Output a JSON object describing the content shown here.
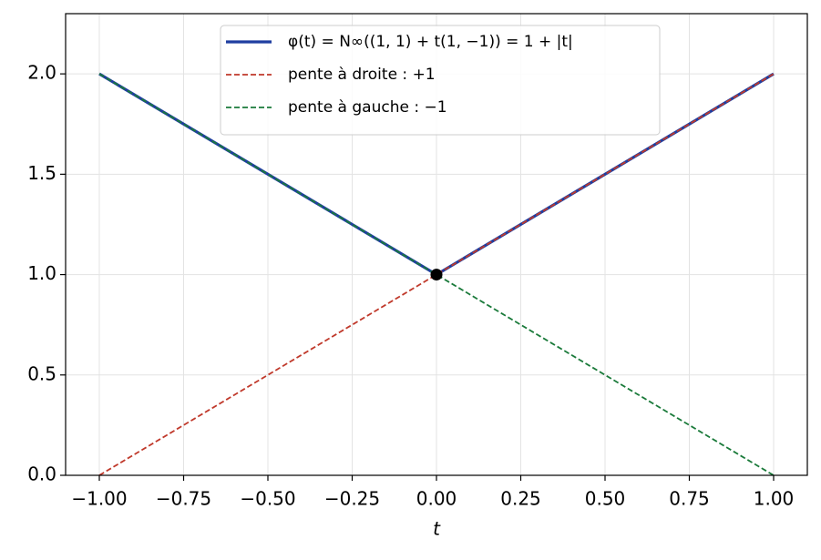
{
  "chart_data": {
    "type": "line",
    "xlabel": "t",
    "xlim": [
      -1.1,
      1.1
    ],
    "ylim": [
      0,
      2.3
    ],
    "xticks": [
      {
        "value": -1,
        "label": "−1.00"
      },
      {
        "value": -0.75,
        "label": "−0.75"
      },
      {
        "value": -0.5,
        "label": "−0.50"
      },
      {
        "value": -0.25,
        "label": "−0.25"
      },
      {
        "value": 0,
        "label": "0.00"
      },
      0.25,
      {
        "value": 0.5,
        "label": "0.50"
      },
      0.75,
      {
        "value": 1,
        "label": "1.00"
      }
    ],
    "yticks": [
      {
        "value": 0,
        "label": "0.0"
      },
      0.5,
      {
        "value": 1,
        "label": "1.0"
      },
      1.5,
      {
        "value": 2,
        "label": "2.0"
      }
    ],
    "grid": true,
    "legend": "upper center",
    "series": [
      {
        "name": "φ(t) = N∞((1, 1) + t(1, −1)) = 1 + |t|",
        "color": "#1f3ea0",
        "linestyle": "solid",
        "x": [
          -1,
          0,
          1
        ],
        "values": [
          2,
          1,
          2
        ]
      },
      {
        "name": "pente à droite : +1",
        "color": "#c0392b",
        "linestyle": "dashed",
        "x": [
          -1,
          1
        ],
        "values": [
          0,
          2
        ]
      },
      {
        "name": "pente à gauche : −1",
        "color": "#1a7a3a",
        "linestyle": "dashed",
        "x": [
          -1,
          1
        ],
        "values": [
          2,
          0
        ]
      }
    ],
    "markers": [
      {
        "x": 0,
        "y": 1,
        "color": "#000000"
      }
    ]
  }
}
